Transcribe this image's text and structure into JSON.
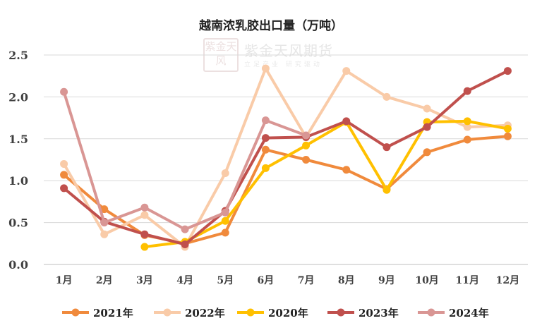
{
  "watermark": {
    "logo_text": "紫金天风",
    "brand": "紫金天风期货",
    "tagline": "立足产业 研究驱动"
  },
  "chart_data": {
    "type": "line",
    "title": "越南浓乳胶出口量（万吨）",
    "xlabel": "",
    "ylabel": "",
    "categories": [
      "1月",
      "2月",
      "3月",
      "4月",
      "5月",
      "6月",
      "7月",
      "8月",
      "9月",
      "10月",
      "11月",
      "12月"
    ],
    "ylim": [
      0,
      2.5
    ],
    "yticks": [
      "0.0",
      "0.5",
      "1.0",
      "1.5",
      "2.0",
      "2.5"
    ],
    "grid": "horizontal",
    "legend_position": "bottom",
    "series": [
      {
        "name": "2021年",
        "color": "#f08a3c",
        "values": [
          1.07,
          0.66,
          0.35,
          0.25,
          0.38,
          1.37,
          1.25,
          1.13,
          0.9,
          1.34,
          1.49,
          1.53
        ]
      },
      {
        "name": "2022年",
        "color": "#f9cba8",
        "values": [
          1.2,
          0.36,
          0.59,
          0.21,
          1.09,
          2.34,
          1.52,
          2.31,
          2.0,
          1.86,
          1.64,
          1.66
        ]
      },
      {
        "name": "2020年",
        "color": "#ffc000",
        "values": [
          null,
          null,
          0.21,
          0.27,
          0.52,
          1.15,
          1.42,
          1.7,
          0.89,
          1.7,
          1.71,
          1.62
        ]
      },
      {
        "name": "2023年",
        "color": "#c0504d",
        "values": [
          0.91,
          0.51,
          0.36,
          0.24,
          0.64,
          1.51,
          1.52,
          1.71,
          1.4,
          1.64,
          2.07,
          2.31
        ]
      },
      {
        "name": "2024年",
        "color": "#d99694",
        "values": [
          2.06,
          0.5,
          0.68,
          0.42,
          0.62,
          1.72,
          1.54,
          null,
          null,
          null,
          null,
          null
        ]
      }
    ]
  }
}
